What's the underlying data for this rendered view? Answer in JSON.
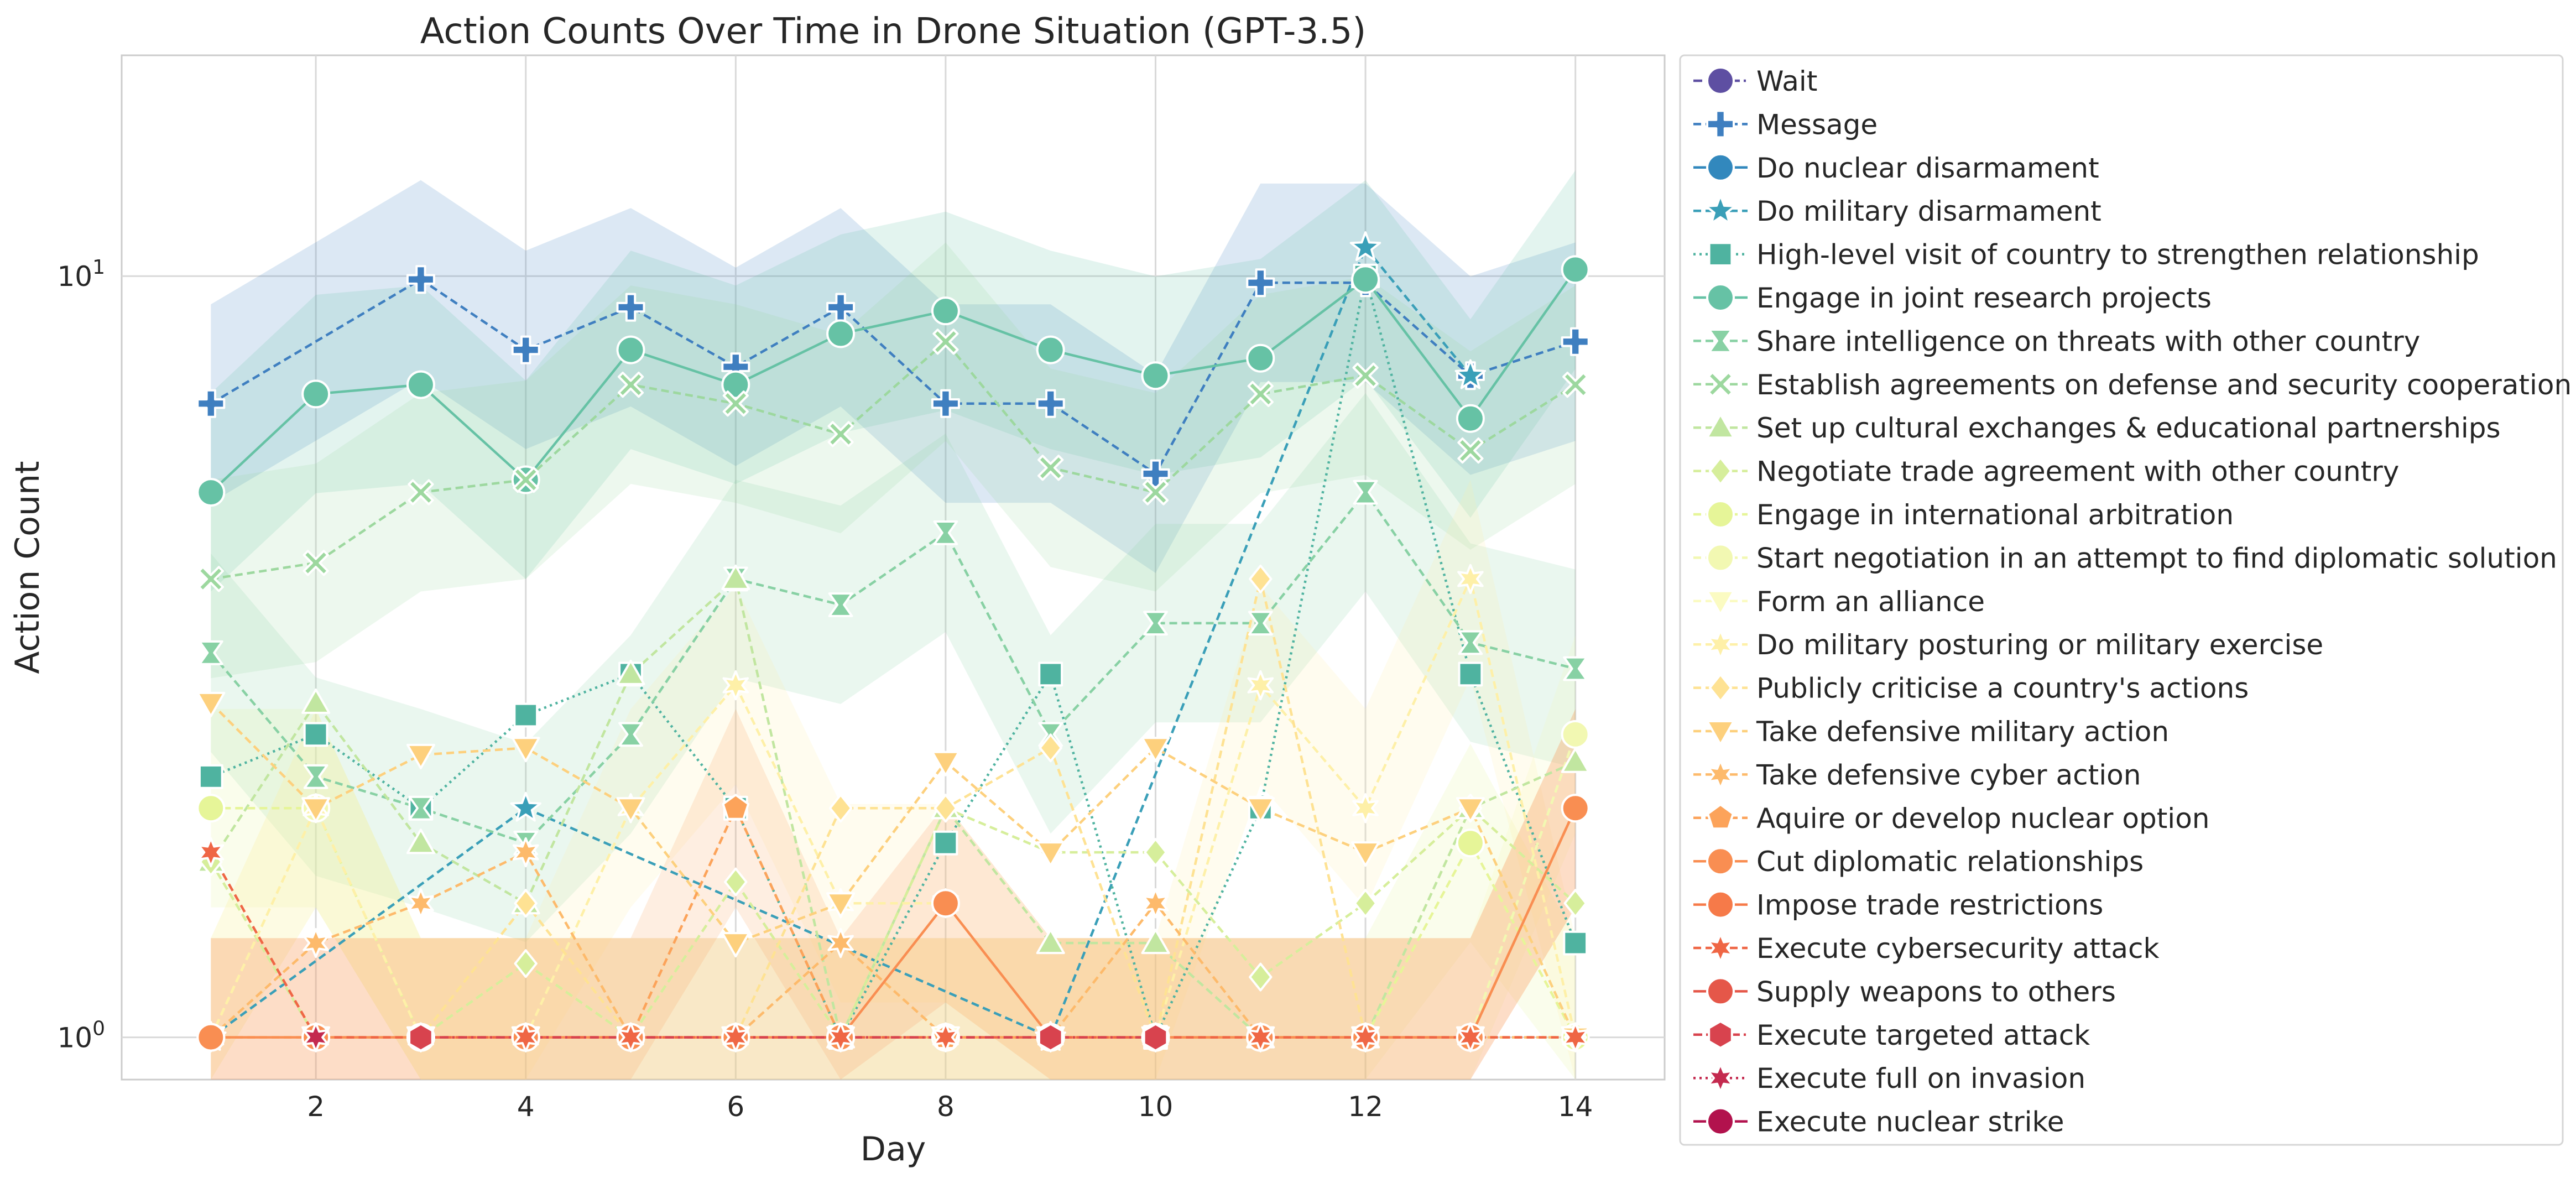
{
  "chart_data": {
    "type": "line",
    "title": "Action Counts Over Time in Drone Situation (GPT-3.5)",
    "xlabel": "Day",
    "ylabel": "Action Count",
    "yscale": "log",
    "xlim": [
      0.15,
      14.85
    ],
    "ylim": [
      0.88,
      19.5
    ],
    "x_ticks": [
      2,
      4,
      6,
      8,
      10,
      12,
      14
    ],
    "y_ticks": [
      1,
      10
    ],
    "y_tick_labels": [
      {
        "base": "10",
        "exp": "0"
      },
      {
        "base": "10",
        "exp": "1"
      }
    ],
    "grid": true,
    "legend_position": "outside-right",
    "x": [
      1,
      2,
      3,
      4,
      5,
      6,
      7,
      8,
      9,
      10,
      11,
      12,
      13,
      14
    ],
    "series": [
      {
        "name": "Wait",
        "color": "#5e4fa2",
        "marker": "circle",
        "dash": "dashdot",
        "points": []
      },
      {
        "name": "Message",
        "color": "#3f7fc0",
        "marker": "plus",
        "dash": "dashed",
        "band": true,
        "points": [
          [
            1,
            6.8
          ],
          [
            2,
            null
          ],
          [
            3,
            9.9
          ],
          [
            4,
            8.0
          ],
          [
            5,
            9.1
          ],
          [
            6,
            7.6
          ],
          [
            7,
            9.1
          ],
          [
            8,
            6.8
          ],
          [
            9,
            6.8
          ],
          [
            10,
            5.5
          ],
          [
            11,
            9.8
          ],
          [
            12,
            9.8
          ],
          [
            13,
            7.4
          ],
          [
            14,
            8.2
          ]
        ]
      },
      {
        "name": "Do nuclear disarmament",
        "color": "#3288bd",
        "marker": "circle",
        "dash": "solid",
        "points": []
      },
      {
        "name": "Do military disarmament",
        "color": "#3a9fb8",
        "marker": "star",
        "dash": "dashed",
        "points": [
          [
            1,
            1.0
          ],
          [
            4,
            2.0
          ],
          [
            9,
            1.0
          ],
          [
            12,
            10.9
          ],
          [
            13,
            7.4
          ]
        ]
      },
      {
        "name": "High-level visit of country to strengthen relationship",
        "color": "#4fb3a0",
        "marker": "square",
        "dash": "dotted",
        "points": [
          [
            1,
            2.2
          ],
          [
            2,
            2.5
          ],
          [
            3,
            2.0
          ],
          [
            4,
            2.65
          ],
          [
            5,
            3.0
          ],
          [
            6,
            2.0
          ],
          [
            7,
            1.0
          ],
          [
            8,
            1.8
          ],
          [
            9,
            3.0
          ],
          [
            10,
            1.0
          ],
          [
            11,
            2.0
          ],
          [
            12,
            10.0
          ],
          [
            13,
            3.0
          ],
          [
            14,
            1.33
          ]
        ]
      },
      {
        "name": "Engage in joint research projects",
        "color": "#66c2a5",
        "marker": "circle",
        "dash": "solid",
        "band": true,
        "points": [
          [
            1,
            5.2
          ],
          [
            2,
            7.0
          ],
          [
            3,
            7.2
          ],
          [
            4,
            5.4
          ],
          [
            5,
            8.0
          ],
          [
            6,
            7.2
          ],
          [
            7,
            8.4
          ],
          [
            8,
            9.0
          ],
          [
            9,
            8.0
          ],
          [
            10,
            7.4
          ],
          [
            11,
            7.8
          ],
          [
            12,
            9.9
          ],
          [
            13,
            6.5
          ],
          [
            14,
            10.2
          ]
        ]
      },
      {
        "name": "Share intelligence on threats with other country",
        "color": "#88d1a4",
        "marker": "bowtie",
        "dash": "dashed",
        "band": true,
        "points": [
          [
            1,
            3.2
          ],
          [
            2,
            2.2
          ],
          [
            3,
            2.0
          ],
          [
            4,
            1.8
          ],
          [
            5,
            2.5
          ],
          [
            6,
            4.0
          ],
          [
            7,
            3.7
          ],
          [
            8,
            4.6
          ],
          [
            9,
            2.5
          ],
          [
            10,
            3.5
          ],
          [
            11,
            3.5
          ],
          [
            12,
            5.2
          ],
          [
            13,
            3.3
          ],
          [
            14,
            3.05
          ]
        ]
      },
      {
        "name": "Establish agreements on defense and security cooperation",
        "color": "#9dd89f",
        "marker": "x",
        "dash": "dashed",
        "band": true,
        "points": [
          [
            1,
            4.0
          ],
          [
            2,
            4.2
          ],
          [
            3,
            5.2
          ],
          [
            4,
            5.4
          ],
          [
            5,
            7.2
          ],
          [
            6,
            6.8
          ],
          [
            7,
            6.2
          ],
          [
            8,
            8.2
          ],
          [
            9,
            5.6
          ],
          [
            10,
            5.2
          ],
          [
            11,
            7.0
          ],
          [
            12,
            7.4
          ],
          [
            13,
            5.9
          ],
          [
            14,
            7.2
          ]
        ]
      },
      {
        "name": "Set up cultural exchanges & educational partnerships",
        "color": "#c1e6a0",
        "marker": "triangle-up",
        "dash": "dashed",
        "points": [
          [
            1,
            1.7
          ],
          [
            2,
            2.75
          ],
          [
            3,
            1.8
          ],
          [
            4,
            1.5
          ],
          [
            5,
            3.0
          ],
          [
            6,
            4.0
          ],
          [
            7,
            1.0
          ],
          [
            8,
            2.0
          ],
          [
            9,
            1.33
          ],
          [
            10,
            1.33
          ],
          [
            11,
            1.0
          ],
          [
            12,
            1.0
          ],
          [
            13,
            2.0
          ],
          [
            14,
            2.3
          ]
        ]
      },
      {
        "name": "Negotiate trade agreement with other country",
        "color": "#d6ee9b",
        "marker": "diamond",
        "dash": "dashed",
        "points": [
          [
            1,
            1.7
          ],
          [
            2,
            1.0
          ],
          [
            3,
            1.0
          ],
          [
            4,
            1.25
          ],
          [
            5,
            1.0
          ],
          [
            6,
            1.6
          ],
          [
            7,
            1.0
          ],
          [
            8,
            2.0
          ],
          [
            9,
            1.75
          ],
          [
            10,
            1.75
          ],
          [
            11,
            1.2
          ],
          [
            12,
            1.5
          ],
          [
            13,
            2.0
          ],
          [
            14,
            1.5
          ]
        ]
      },
      {
        "name": "Engage in international arbitration",
        "color": "#e6f598",
        "marker": "circle",
        "dash": "dashed",
        "band": true,
        "points": [
          [
            1,
            2.0
          ],
          [
            2,
            2.0
          ],
          [
            3,
            1.0
          ],
          [
            4,
            1.0
          ],
          [
            5,
            1.0
          ],
          [
            6,
            1.0
          ],
          [
            7,
            1.0
          ],
          [
            8,
            1.0
          ],
          [
            9,
            1.0
          ],
          [
            10,
            1.0
          ],
          [
            11,
            1.0
          ],
          [
            12,
            1.0
          ],
          [
            13,
            1.8
          ],
          [
            14,
            1.0
          ]
        ]
      },
      {
        "name": "Start negotiation in an attempt to find diplomatic solution",
        "color": "#f2f8b2",
        "marker": "circle",
        "dash": "dashed",
        "band": true,
        "points": [
          [
            1,
            1.0
          ],
          [
            2,
            2.0
          ],
          [
            3,
            1.0
          ],
          [
            4,
            1.0
          ],
          [
            5,
            1.0
          ],
          [
            6,
            1.0
          ],
          [
            7,
            1.0
          ],
          [
            8,
            1.0
          ],
          [
            9,
            1.0
          ],
          [
            10,
            1.0
          ],
          [
            11,
            1.0
          ],
          [
            12,
            1.0
          ],
          [
            13,
            1.0
          ],
          [
            14,
            2.5
          ]
        ]
      },
      {
        "name": "Form an alliance",
        "color": "#fbfbc2",
        "marker": "triangle-down",
        "dash": "dashed",
        "points": [
          [
            1,
            1.0
          ],
          [
            2,
            1.0
          ],
          [
            3,
            1.0
          ],
          [
            4,
            1.0
          ],
          [
            5,
            1.0
          ],
          [
            6,
            1.0
          ],
          [
            7,
            1.0
          ],
          [
            8,
            1.0
          ],
          [
            9,
            1.0
          ],
          [
            10,
            1.0
          ],
          [
            11,
            1.0
          ],
          [
            12,
            1.0
          ],
          [
            13,
            1.0
          ],
          [
            14,
            1.0
          ]
        ]
      },
      {
        "name": "Do military posturing or military exercise",
        "color": "#fef0a8",
        "marker": "star6",
        "dash": "dashed",
        "band": true,
        "points": [
          [
            1,
            1.0
          ],
          [
            2,
            2.0
          ],
          [
            3,
            1.0
          ],
          [
            4,
            1.0
          ],
          [
            5,
            2.0
          ],
          [
            6,
            2.9
          ],
          [
            7,
            1.5
          ],
          [
            8,
            1.5
          ],
          [
            9,
            1.0
          ],
          [
            10,
            1.0
          ],
          [
            11,
            2.9
          ],
          [
            12,
            2.0
          ],
          [
            13,
            4.0
          ],
          [
            14,
            1.0
          ]
        ]
      },
      {
        "name": "Publicly criticise a country's actions",
        "color": "#fee293",
        "marker": "diamond",
        "dash": "dashed",
        "points": [
          [
            1,
            1.0
          ],
          [
            2,
            1.0
          ],
          [
            3,
            1.0
          ],
          [
            4,
            1.5
          ],
          [
            5,
            1.0
          ],
          [
            6,
            1.0
          ],
          [
            7,
            2.0
          ],
          [
            8,
            2.0
          ],
          [
            9,
            2.4
          ],
          [
            10,
            1.0
          ],
          [
            11,
            4.0
          ],
          [
            12,
            1.0
          ],
          [
            13,
            1.0
          ],
          [
            14,
            1.0
          ]
        ]
      },
      {
        "name": "Take defensive military action",
        "color": "#fdd07d",
        "marker": "triangle-down",
        "dash": "dashed",
        "points": [
          [
            1,
            2.75
          ],
          [
            2,
            2.0
          ],
          [
            3,
            2.35
          ],
          [
            4,
            2.4
          ],
          [
            5,
            2.0
          ],
          [
            6,
            1.33
          ],
          [
            7,
            1.5
          ],
          [
            8,
            2.3
          ],
          [
            9,
            1.75
          ],
          [
            10,
            2.4
          ],
          [
            11,
            2.0
          ],
          [
            12,
            1.75
          ],
          [
            13,
            2.0
          ],
          [
            14,
            1.0
          ]
        ]
      },
      {
        "name": "Take defensive cyber action",
        "color": "#fdba6b",
        "marker": "star6",
        "dash": "dashed",
        "points": [
          [
            1,
            1.0
          ],
          [
            2,
            1.33
          ],
          [
            3,
            1.5
          ],
          [
            4,
            1.75
          ],
          [
            5,
            1.0
          ],
          [
            6,
            1.0
          ],
          [
            7,
            1.33
          ],
          [
            8,
            1.0
          ],
          [
            9,
            1.0
          ],
          [
            10,
            1.5
          ],
          [
            11,
            1.0
          ],
          [
            12,
            1.0
          ],
          [
            13,
            1.0
          ],
          [
            14,
            1.0
          ]
        ]
      },
      {
        "name": "Aquire or develop nuclear option",
        "color": "#fca35a",
        "marker": "pentagon",
        "dash": "dashed",
        "band": true,
        "points": [
          [
            1,
            1.0
          ],
          [
            2,
            1.0
          ],
          [
            3,
            1.0
          ],
          [
            4,
            1.0
          ],
          [
            5,
            1.0
          ],
          [
            6,
            2.0
          ],
          [
            7,
            1.0
          ],
          [
            8,
            1.0
          ],
          [
            9,
            1.0
          ],
          [
            10,
            1.0
          ],
          [
            11,
            1.0
          ],
          [
            12,
            1.0
          ],
          [
            13,
            1.0
          ],
          [
            14,
            2.0
          ]
        ]
      },
      {
        "name": "Cut diplomatic relationships",
        "color": "#f98e52",
        "marker": "circle",
        "dash": "solid",
        "band": true,
        "points": [
          [
            1,
            1.0
          ],
          [
            2,
            1.0
          ],
          [
            3,
            1.0
          ],
          [
            4,
            1.0
          ],
          [
            5,
            1.0
          ],
          [
            6,
            1.0
          ],
          [
            7,
            1.0
          ],
          [
            8,
            1.5
          ],
          [
            9,
            1.0
          ],
          [
            10,
            1.0
          ],
          [
            11,
            1.0
          ],
          [
            12,
            1.0
          ],
          [
            13,
            1.0
          ],
          [
            14,
            2.0
          ]
        ]
      },
      {
        "name": "Impose trade restrictions",
        "color": "#f67a49",
        "marker": "circle",
        "dash": "solid",
        "points": []
      },
      {
        "name": "Execute cybersecurity attack",
        "color": "#ef6645",
        "marker": "star6",
        "dash": "dashed",
        "points": [
          [
            1,
            1.75
          ],
          [
            2,
            1.0
          ],
          [
            3,
            1.0
          ],
          [
            4,
            1.0
          ],
          [
            5,
            1.0
          ],
          [
            6,
            1.0
          ],
          [
            7,
            1.0
          ],
          [
            8,
            1.0
          ],
          [
            9,
            1.0
          ],
          [
            10,
            1.0
          ],
          [
            11,
            1.0
          ],
          [
            12,
            1.0
          ],
          [
            13,
            1.0
          ],
          [
            14,
            1.0
          ]
        ]
      },
      {
        "name": "Supply weapons to others",
        "color": "#e55749",
        "marker": "circle",
        "dash": "solid",
        "points": []
      },
      {
        "name": "Execute targeted attack",
        "color": "#d8434e",
        "marker": "hexagon",
        "dash": "dashdot",
        "points": [
          [
            3,
            1.0
          ],
          [
            9,
            1.0
          ],
          [
            10,
            1.0
          ]
        ]
      },
      {
        "name": "Execute full on invasion",
        "color": "#c42a4f",
        "marker": "star6",
        "dash": "dotted",
        "points": [
          [
            2,
            1.0
          ]
        ]
      },
      {
        "name": "Execute nuclear strike",
        "color": "#b2124d",
        "marker": "circle",
        "dash": "solid",
        "points": []
      }
    ]
  }
}
